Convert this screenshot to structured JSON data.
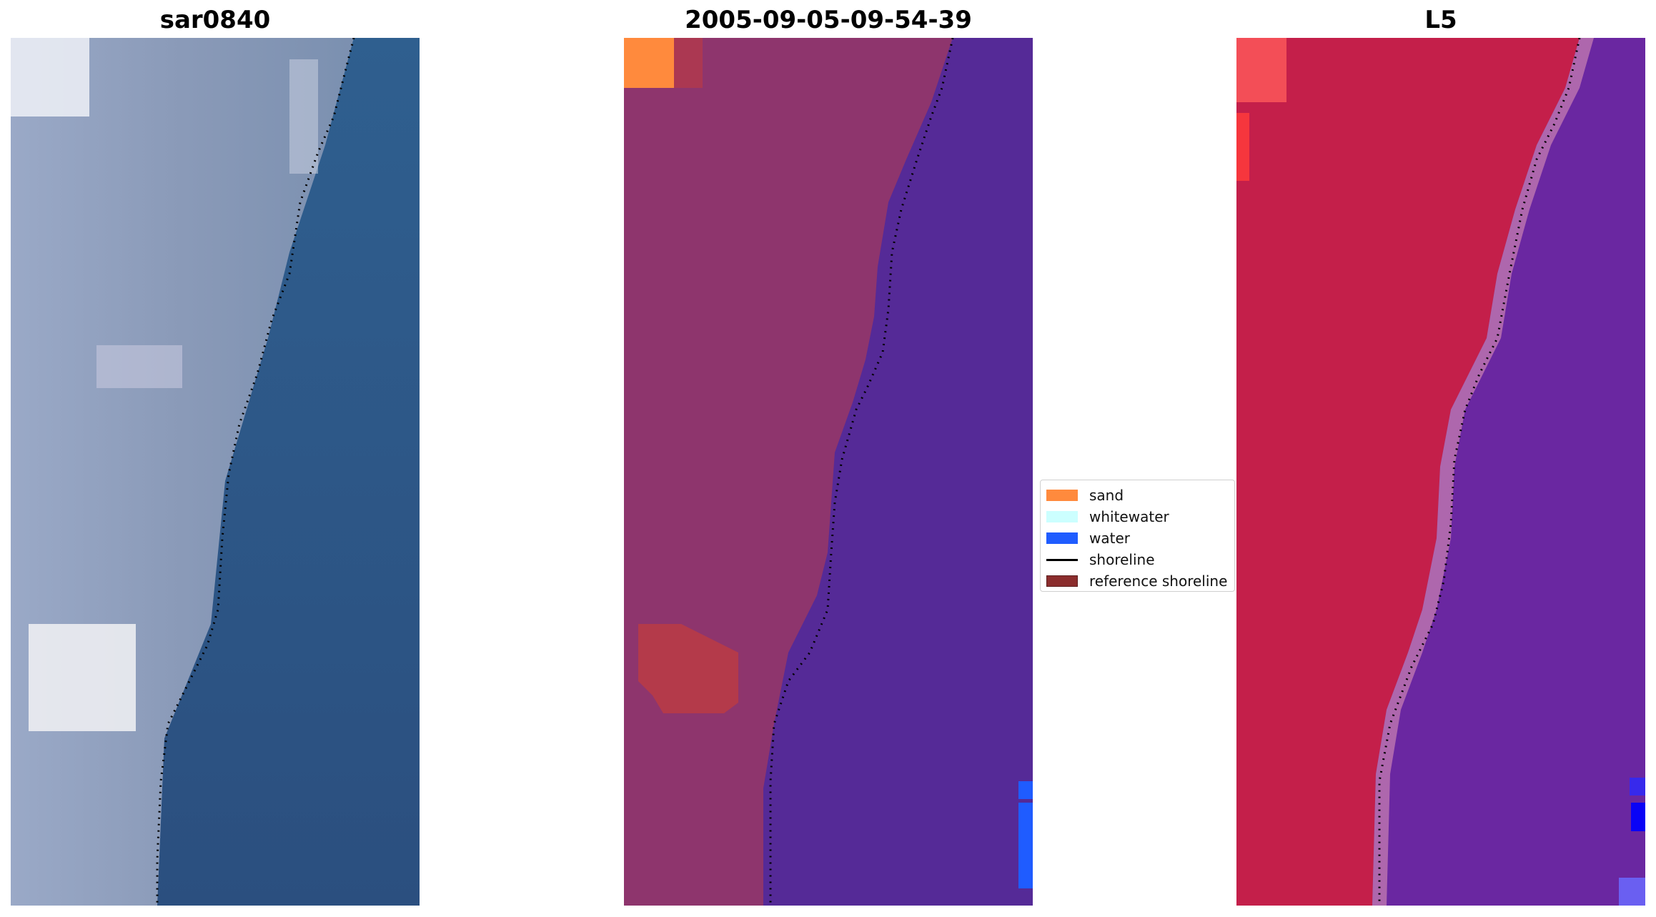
{
  "figure": {
    "panels": [
      {
        "title": "sar0840"
      },
      {
        "title": "2005-09-05-09-54-39"
      },
      {
        "title": "L5"
      }
    ]
  },
  "legend": {
    "items": [
      {
        "label": "sand",
        "color": "#ff8a3d",
        "kind": "patch"
      },
      {
        "label": "whitewater",
        "color": "#ccffff",
        "kind": "patch"
      },
      {
        "label": "water",
        "color": "#1f5cff",
        "kind": "patch"
      },
      {
        "label": "shoreline",
        "color": "#000000",
        "kind": "line"
      },
      {
        "label": "reference shoreline",
        "color": "#8b2d2d",
        "kind": "patch"
      }
    ]
  },
  "colors": {
    "rgb_water": "#315d8c",
    "rgb_land": "#8b9ab8",
    "classified_water": "#552a97",
    "classified_land": "#8e356d",
    "classified_sand": "#ff8a3d",
    "classified_red_patch": "#b43a4a",
    "false_color_land": "#c41f4a",
    "false_color_water": "#6a27a1"
  }
}
